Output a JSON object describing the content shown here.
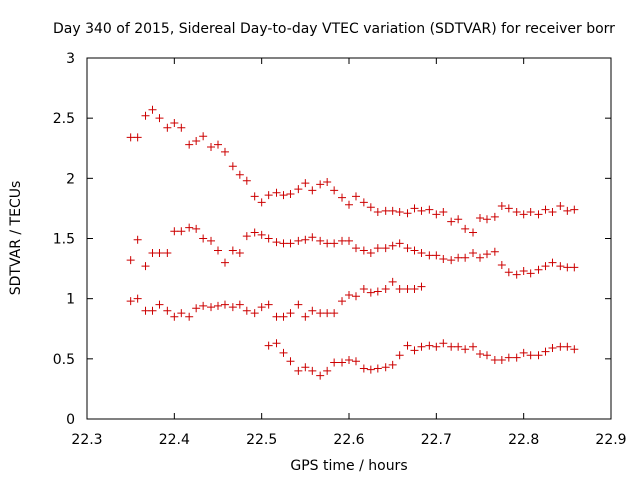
{
  "chart_data": {
    "type": "scatter",
    "title": "Day 340 of 2015, Sidereal Day-to-day VTEC variation (SDTVAR) for receiver borr",
    "xlabel": "GPS time / hours",
    "ylabel": "SDTVAR / TECUs",
    "xlim": [
      22.3,
      22.9
    ],
    "ylim": [
      0,
      3
    ],
    "xticks": [
      "22.3",
      "22.4",
      "22.5",
      "22.6",
      "22.7",
      "22.8",
      "22.9"
    ],
    "yticks": [
      "0",
      "0.5",
      "1",
      "1.5",
      "2",
      "2.5",
      "3"
    ],
    "marker": "+",
    "series": [
      {
        "name": "series-1",
        "color": "#cc0000",
        "x": [
          22.35,
          22.358,
          22.367,
          22.375,
          22.383,
          22.392,
          22.4,
          22.408,
          22.417,
          22.425,
          22.433,
          22.442,
          22.45,
          22.458,
          22.467,
          22.475,
          22.483,
          22.492,
          22.5,
          22.508,
          22.517,
          22.525,
          22.533,
          22.542,
          22.55,
          22.558,
          22.567,
          22.575,
          22.583,
          22.592,
          22.6,
          22.608,
          22.617,
          22.625,
          22.633,
          22.642,
          22.65,
          22.658,
          22.667,
          22.675,
          22.683,
          22.692,
          22.7,
          22.708,
          22.717,
          22.725,
          22.733,
          22.742,
          22.75,
          22.758,
          22.767,
          22.775,
          22.783,
          22.792,
          22.8,
          22.808,
          22.817,
          22.825,
          22.833,
          22.842,
          22.85,
          22.858
        ],
        "y": [
          2.34,
          2.34,
          2.52,
          2.57,
          2.5,
          2.42,
          2.46,
          2.42,
          2.28,
          2.31,
          2.35,
          2.26,
          2.28,
          2.22,
          2.1,
          2.03,
          1.98,
          1.85,
          1.8,
          1.86,
          1.88,
          1.86,
          1.87,
          1.91,
          1.96,
          1.9,
          1.95,
          1.97,
          1.9,
          1.84,
          1.78,
          1.85,
          1.8,
          1.76,
          1.72,
          1.73,
          1.73,
          1.72,
          1.71,
          1.75,
          1.73,
          1.74,
          1.7,
          1.72,
          1.64,
          1.66,
          1.58,
          1.55,
          1.67,
          1.66,
          1.68,
          1.77,
          1.75,
          1.72,
          1.7,
          1.72,
          1.7,
          1.74,
          1.72,
          1.77,
          1.73,
          1.74
        ]
      },
      {
        "name": "series-2",
        "color": "#cc0000",
        "x": [
          22.35,
          22.358,
          22.367,
          22.375,
          22.383,
          22.392,
          22.4,
          22.408,
          22.417,
          22.425,
          22.433,
          22.442,
          22.45,
          22.458,
          22.467,
          22.475,
          22.483,
          22.492,
          22.5,
          22.508,
          22.517,
          22.525,
          22.533,
          22.542,
          22.55,
          22.558,
          22.567,
          22.575,
          22.583,
          22.592,
          22.6,
          22.608,
          22.617,
          22.625,
          22.633,
          22.642,
          22.65,
          22.658,
          22.667,
          22.675,
          22.683,
          22.692,
          22.7,
          22.708,
          22.717,
          22.725,
          22.733,
          22.742,
          22.75,
          22.758,
          22.767,
          22.775,
          22.783,
          22.792,
          22.8,
          22.808,
          22.817,
          22.825,
          22.833,
          22.842,
          22.85,
          22.858
        ],
        "y": [
          1.32,
          1.49,
          1.27,
          1.38,
          1.38,
          1.38,
          1.56,
          1.56,
          1.59,
          1.58,
          1.5,
          1.48,
          1.4,
          1.3,
          1.4,
          1.38,
          1.52,
          1.55,
          1.53,
          1.5,
          1.47,
          1.46,
          1.46,
          1.48,
          1.49,
          1.51,
          1.48,
          1.46,
          1.46,
          1.48,
          1.48,
          1.42,
          1.4,
          1.38,
          1.42,
          1.42,
          1.44,
          1.46,
          1.42,
          1.4,
          1.38,
          1.36,
          1.36,
          1.33,
          1.32,
          1.34,
          1.34,
          1.38,
          1.34,
          1.37,
          1.39,
          1.28,
          1.22,
          1.2,
          1.23,
          1.21,
          1.24,
          1.27,
          1.3,
          1.27,
          1.26,
          1.26
        ]
      },
      {
        "name": "series-3",
        "color": "#cc0000",
        "x": [
          22.35,
          22.358,
          22.367,
          22.375,
          22.383,
          22.392,
          22.4,
          22.408,
          22.417,
          22.425,
          22.433,
          22.442,
          22.45,
          22.458,
          22.467,
          22.475,
          22.483,
          22.492,
          22.5,
          22.508,
          22.517,
          22.525,
          22.533,
          22.542,
          22.55,
          22.558,
          22.567,
          22.575,
          22.583,
          22.592,
          22.6,
          22.608,
          22.617,
          22.625,
          22.633,
          22.642,
          22.65,
          22.658,
          22.667,
          22.675,
          22.683
        ],
        "y": [
          0.98,
          1.0,
          0.9,
          0.9,
          0.95,
          0.9,
          0.85,
          0.88,
          0.85,
          0.92,
          0.94,
          0.93,
          0.94,
          0.95,
          0.93,
          0.95,
          0.9,
          0.88,
          0.93,
          0.95,
          0.85,
          0.85,
          0.88,
          0.95,
          0.85,
          0.9,
          0.88,
          0.88,
          0.88,
          0.98,
          1.03,
          1.02,
          1.08,
          1.05,
          1.06,
          1.08,
          1.14,
          1.08,
          1.08,
          1.08,
          1.1
        ]
      },
      {
        "name": "series-4",
        "color": "#cc0000",
        "x": [
          22.508,
          22.517,
          22.525,
          22.533,
          22.542,
          22.55,
          22.558,
          22.567,
          22.575,
          22.583,
          22.592,
          22.6,
          22.608,
          22.617,
          22.625,
          22.633,
          22.642,
          22.65,
          22.658,
          22.667,
          22.675,
          22.683,
          22.692,
          22.7,
          22.708,
          22.717,
          22.725,
          22.733,
          22.742,
          22.75,
          22.758,
          22.767,
          22.775,
          22.783,
          22.792,
          22.8,
          22.808,
          22.817,
          22.825,
          22.833,
          22.842,
          22.85,
          22.858
        ],
        "y": [
          0.61,
          0.63,
          0.55,
          0.48,
          0.4,
          0.43,
          0.4,
          0.36,
          0.4,
          0.47,
          0.47,
          0.49,
          0.48,
          0.42,
          0.41,
          0.42,
          0.43,
          0.45,
          0.53,
          0.61,
          0.57,
          0.6,
          0.61,
          0.6,
          0.63,
          0.6,
          0.6,
          0.58,
          0.6,
          0.54,
          0.53,
          0.49,
          0.49,
          0.51,
          0.51,
          0.55,
          0.53,
          0.53,
          0.56,
          0.59,
          0.6,
          0.6,
          0.58
        ]
      }
    ]
  }
}
